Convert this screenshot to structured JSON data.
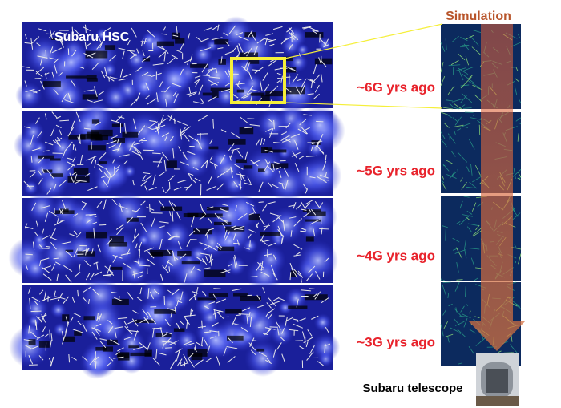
{
  "panel_title": "Subaru HSC",
  "simulation_title": "Simulation",
  "epochs": [
    "~6G yrs ago",
    "~5G yrs ago",
    "~4G yrs ago",
    "~3G yrs ago"
  ],
  "telescope_label": "Subaru telescope"
}
